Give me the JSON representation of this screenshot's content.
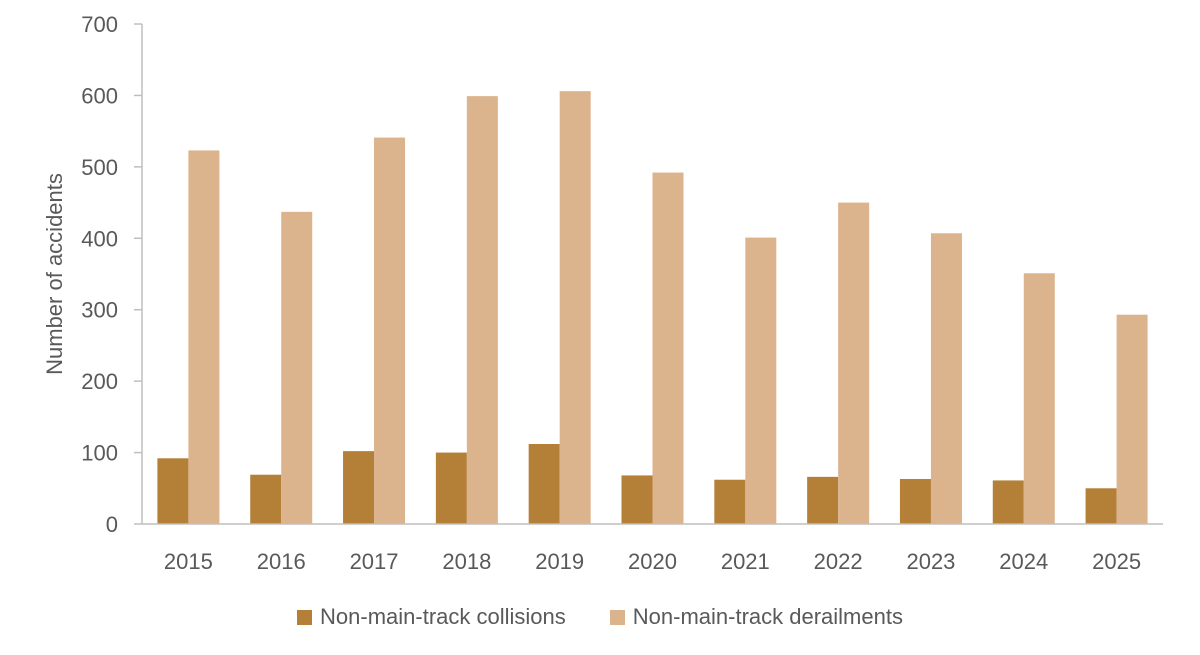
{
  "chart_data": {
    "type": "bar",
    "categories": [
      "2015",
      "2016",
      "2017",
      "2018",
      "2019",
      "2020",
      "2021",
      "2022",
      "2023",
      "2024",
      "2025"
    ],
    "series": [
      {
        "name": "Non-main-track collisions",
        "color": "#B47F37",
        "values": [
          92,
          69,
          102,
          100,
          112,
          68,
          62,
          66,
          63,
          61,
          50
        ]
      },
      {
        "name": "Non-main-track derailments",
        "color": "#DBB38C",
        "values": [
          523,
          437,
          541,
          599,
          606,
          492,
          401,
          450,
          407,
          351,
          293
        ]
      }
    ],
    "title": "",
    "xlabel": "",
    "ylabel": "Number of accidents",
    "ylim": [
      0,
      700
    ],
    "yticks": [
      "0",
      "100",
      "200",
      "300",
      "400",
      "500",
      "600",
      "700"
    ],
    "grid": false,
    "legend_position": "bottom"
  }
}
